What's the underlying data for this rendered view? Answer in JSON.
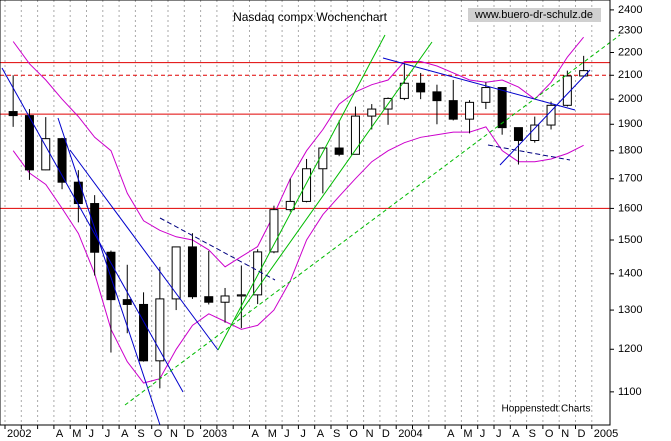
{
  "chart_data": {
    "type": "candlestick",
    "title": "Nasdaq compx Wochenchart",
    "source": "www.buero-dr-schulz.de",
    "credit": "Hoppenstedt Charts",
    "categories": [
      "2002",
      null,
      null,
      "A",
      "M",
      "J",
      "J",
      "A",
      "S",
      "O",
      "N",
      "D",
      "2003",
      null,
      null,
      "A",
      "M",
      "J",
      "J",
      "A",
      "S",
      "O",
      "N",
      "D",
      "2004",
      null,
      null,
      "A",
      "M",
      "J",
      "J",
      "A",
      "S",
      "O",
      "N",
      "D",
      "2005"
    ],
    "open": [
      1950,
      1934,
      1731,
      1845,
      1688,
      1616,
      1463,
      1328,
      1315,
      1172,
      1330,
      1479,
      1336,
      1321,
      1338,
      1341,
      1464,
      1596,
      1623,
      1735,
      1810,
      1787,
      1932,
      1960,
      2003,
      2066,
      2030,
      1994,
      1920,
      1987,
      2048,
      1887,
      1838,
      1897,
      1975,
      2097,
      null
    ],
    "high": [
      2100,
      1960,
      1928,
      1848,
      1730,
      1644,
      1468,
      1426,
      1348,
      1420,
      1480,
      1521,
      1467,
      1360,
      1424,
      1472,
      1609,
      1700,
      1770,
      1813,
      1915,
      1970,
      1980,
      2007,
      2153,
      2110,
      2060,
      2080,
      1996,
      2070,
      2050,
      1885,
      1930,
      1990,
      2120,
      2185,
      null
    ],
    "low": [
      1890,
      1696,
      1730,
      1664,
      1555,
      1395,
      1192,
      1240,
      1170,
      1108,
      1300,
      1330,
      1315,
      1267,
      1253,
      1316,
      1460,
      1589,
      1620,
      1650,
      1780,
      1787,
      1880,
      1898,
      1996,
      2000,
      1900,
      1915,
      1865,
      1960,
      1860,
      1750,
      1830,
      1880,
      1970,
      2100,
      null
    ],
    "close": [
      1934,
      1731,
      1845,
      1688,
      1616,
      1463,
      1328,
      1315,
      1172,
      1330,
      1479,
      1336,
      1321,
      1338,
      1341,
      1464,
      1596,
      1623,
      1735,
      1810,
      1787,
      1932,
      1960,
      2003,
      2066,
      2030,
      1994,
      1920,
      1987,
      2048,
      1887,
      1838,
      1897,
      1975,
      2097,
      2120,
      null
    ],
    "bands": [
      {
        "color": "#cc00cc",
        "values": [
          2250,
          2150,
          2080,
          2000,
          1930,
          1850,
          1800,
          1650,
          1560,
          1530,
          1510,
          1500,
          1470,
          1420,
          1450,
          1480,
          1580,
          1700,
          1800,
          1880,
          1980,
          2030,
          2060,
          2080,
          2160,
          2160,
          2140,
          2110,
          2080,
          2070,
          2080,
          2050,
          2000,
          2070,
          2180,
          2270,
          null
        ]
      },
      {
        "color": "#cc00cc",
        "values": [
          1800,
          1720,
          1680,
          1600,
          1520,
          1400,
          1250,
          1170,
          1120,
          1130,
          1200,
          1260,
          1290,
          1270,
          1250,
          1260,
          1300,
          1380,
          1500,
          1580,
          1640,
          1700,
          1760,
          1800,
          1830,
          1850,
          1860,
          1870,
          1870,
          1890,
          1800,
          1760,
          1760,
          1770,
          1790,
          1820,
          null
        ]
      }
    ],
    "hlines": [
      {
        "value": 2155,
        "color": "#e00000",
        "dashed": false
      },
      {
        "value": 2100,
        "color": "#e00000",
        "dashed": true
      },
      {
        "value": 1940,
        "color": "#e00000",
        "dashed": false
      },
      {
        "value": 1600,
        "color": "#e00000",
        "dashed": false
      }
    ],
    "log_scale": true,
    "ylim": [
      1028,
      2449
    ],
    "yticks": [
      1100,
      1200,
      1300,
      1400,
      1500,
      1600,
      1700,
      1800,
      1900,
      2000,
      2100,
      2200,
      2300,
      2400
    ]
  }
}
